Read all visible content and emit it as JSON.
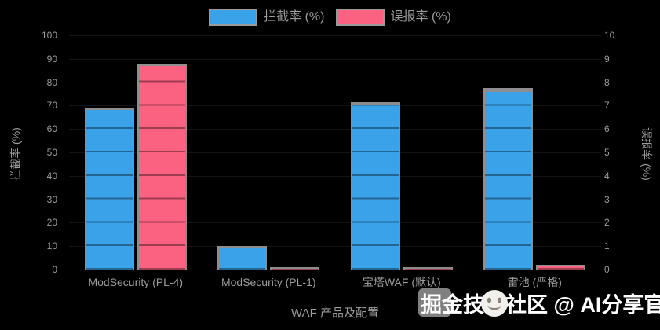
{
  "legend": {
    "items": [
      {
        "label": "拦截率 (%)",
        "color": "#3aa2e8"
      },
      {
        "label": "误报率 (%)",
        "color": "#fb6180"
      }
    ]
  },
  "axes": {
    "left": {
      "title": "拦截率 (%)",
      "ticks": [
        "100",
        "90",
        "80",
        "70",
        "60",
        "50",
        "40",
        "30",
        "20",
        "10",
        "0"
      ]
    },
    "right": {
      "title": "误报率 (%)",
      "ticks": [
        "10",
        "9",
        "8",
        "7",
        "6",
        "5",
        "4",
        "3",
        "2",
        "1",
        "0"
      ]
    },
    "x": {
      "title": "WAF 产品及配置"
    }
  },
  "watermark": {
    "text": "掘金技术社区 @ AI分享官",
    "emoji": "moon-face"
  },
  "colors": {
    "background": "#000000",
    "bar_blue": "#3aa2e8",
    "bar_pink": "#fb6180",
    "bar_border_grey": "#8e8e8e",
    "text_grey": "#9c9c9c",
    "watermark_white": "#ffffff"
  },
  "chart_data": {
    "type": "bar",
    "title": "",
    "categories": [
      "ModSecurity (PL-4)",
      "ModSecurity (PL-1)",
      "宝塔WAF (默认)",
      "雷池 (严格)"
    ],
    "series": [
      {
        "name": "拦截率 (%)",
        "axis": "left",
        "color": "#3aa2e8",
        "values": [
          68.8,
          10.1,
          71.5,
          77.5
        ]
      },
      {
        "name": "误报率 (%)",
        "axis": "right",
        "color": "#fb6180",
        "values": [
          8.8,
          0.08,
          0.08,
          0.2
        ]
      }
    ],
    "xlabel": "WAF 产品及配置",
    "ylabel_left": "拦截率 (%)",
    "ylabel_right": "误报率 (%)",
    "ylim_left": [
      0,
      100
    ],
    "ylim_right": [
      0,
      10
    ],
    "ytick_step_left": 10,
    "ytick_step_right": 1,
    "legend_position": "top-center",
    "grid": "horizontal, dark lines visible over bars, background black"
  }
}
